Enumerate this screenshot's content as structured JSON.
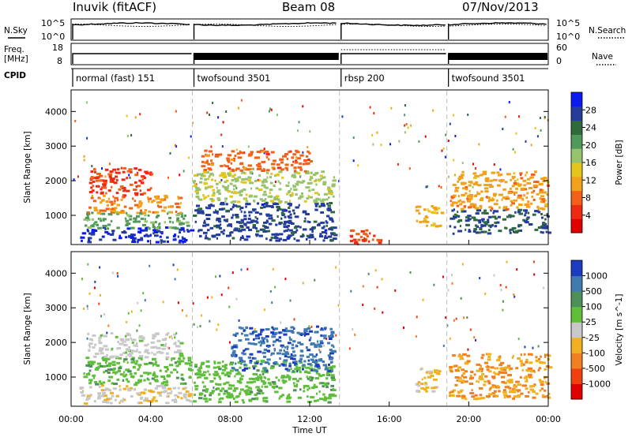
{
  "header": {
    "station": "Inuvik (fitACF)",
    "beam": "Beam 08",
    "date": "07/Nov/2013"
  },
  "noise_panel": {
    "left_label": "N.Sky",
    "right_label": "N.Search",
    "left_ticks": [
      "10^5",
      "10^0"
    ],
    "right_ticks": [
      "10^5",
      "10^0"
    ]
  },
  "freq_panel": {
    "left_label_line1": "Freq.",
    "left_label_line2": "[MHz]",
    "right_label": "Nave",
    "left_ticks": [
      "18",
      "8"
    ],
    "right_ticks": [
      "60",
      "0"
    ]
  },
  "cpid": {
    "label": "CPID",
    "modes": [
      {
        "name": "normal (fast) 151",
        "start_h": 0.0,
        "end_h": 6.1
      },
      {
        "name": "twofsound 3501",
        "start_h": 6.1,
        "end_h": 13.5
      },
      {
        "name": "rbsp 200",
        "start_h": 13.5,
        "end_h": 18.9
      },
      {
        "name": "twofsound 3501",
        "start_h": 18.9,
        "end_h": 24.0
      }
    ]
  },
  "chart_data": [
    {
      "type": "heatmap",
      "title": "",
      "quantity": "Power",
      "xlabel": "",
      "ylabel": "Slant Range [km]",
      "xlim": [
        0,
        24
      ],
      "ylim": [
        180,
        4600
      ],
      "y_ticks": [
        "1000",
        "2000",
        "3000",
        "4000"
      ],
      "colorbar": {
        "label": "Power [dB]",
        "range": [
          0,
          32
        ],
        "ticks": [
          "4",
          "8",
          "12",
          "16",
          "20",
          "24",
          "28"
        ],
        "colors": [
          "#0a1af0",
          "#243c9a",
          "#2e6a3a",
          "#4f9a5a",
          "#96c36b",
          "#e4c51a",
          "#f2a21a",
          "#f46018",
          "#ef2a12",
          "#e00000"
        ]
      },
      "bands": [
        {
          "t0": 0.4,
          "t1": 6.0,
          "r0": 250,
          "r1": 700,
          "value": 29
        },
        {
          "t0": 0.6,
          "t1": 5.8,
          "r0": 650,
          "r1": 1150,
          "value": 20
        },
        {
          "t0": 0.8,
          "t1": 5.5,
          "r0": 1100,
          "r1": 1600,
          "value": 10
        },
        {
          "t0": 0.9,
          "t1": 4.0,
          "r0": 1600,
          "r1": 2400,
          "value": 6
        },
        {
          "t0": 6.1,
          "t1": 13.2,
          "r0": 300,
          "r1": 1400,
          "value": 27
        },
        {
          "t0": 6.1,
          "t1": 13.2,
          "r0": 1400,
          "r1": 2300,
          "value": 17
        },
        {
          "t0": 6.5,
          "t1": 12.0,
          "r0": 2300,
          "r1": 2900,
          "value": 8
        },
        {
          "t0": 14.0,
          "t1": 15.5,
          "r0": 200,
          "r1": 600,
          "value": 6
        },
        {
          "t0": 17.3,
          "t1": 18.6,
          "r0": 700,
          "r1": 1300,
          "value": 12
        },
        {
          "t0": 19.0,
          "t1": 24.0,
          "r0": 500,
          "r1": 1200,
          "value": 26
        },
        {
          "t0": 19.0,
          "t1": 24.0,
          "r0": 1200,
          "r1": 2300,
          "value": 11
        }
      ]
    },
    {
      "type": "heatmap",
      "title": "",
      "quantity": "Velocity",
      "xlabel": "Time UT",
      "ylabel": "Slant Range [km]",
      "xlim": [
        0,
        24
      ],
      "ylim": [
        180,
        4600
      ],
      "x_ticks": [
        "00:00",
        "04:00",
        "08:00",
        "12:00",
        "16:00",
        "20:00",
        "00:00"
      ],
      "y_ticks": [
        "1000",
        "2000",
        "3000",
        "4000"
      ],
      "colorbar": {
        "label": "Velocity [m s^-1]",
        "range": [
          -1200,
          1200
        ],
        "ticks": [
          "1000",
          "500",
          "100",
          "25",
          "-25",
          "-100",
          "-500",
          "-1000"
        ],
        "colors": [
          "#1c3cc0",
          "#3f7ab0",
          "#4f8f5a",
          "#5fbf3a",
          "#c8c8c8",
          "#f0b020",
          "#f08020",
          "#f04010",
          "#e00000"
        ]
      },
      "bands": [
        {
          "t0": 0.4,
          "t1": 6.0,
          "r0": 250,
          "r1": 800,
          "value": -100
        },
        {
          "t0": 0.6,
          "t1": 6.0,
          "r0": 800,
          "r1": 1600,
          "value": 300
        },
        {
          "t0": 0.8,
          "t1": 5.5,
          "r0": 1600,
          "r1": 2300,
          "value": 20
        },
        {
          "t0": 6.1,
          "t1": 13.2,
          "r0": 300,
          "r1": 1500,
          "value": 300
        },
        {
          "t0": 8.0,
          "t1": 13.2,
          "r0": 1200,
          "r1": 2500,
          "value": 900
        },
        {
          "t0": 17.3,
          "t1": 18.6,
          "r0": 600,
          "r1": 1300,
          "value": -200
        },
        {
          "t0": 19.0,
          "t1": 24.0,
          "r0": 400,
          "r1": 1700,
          "value": -400
        }
      ]
    }
  ]
}
